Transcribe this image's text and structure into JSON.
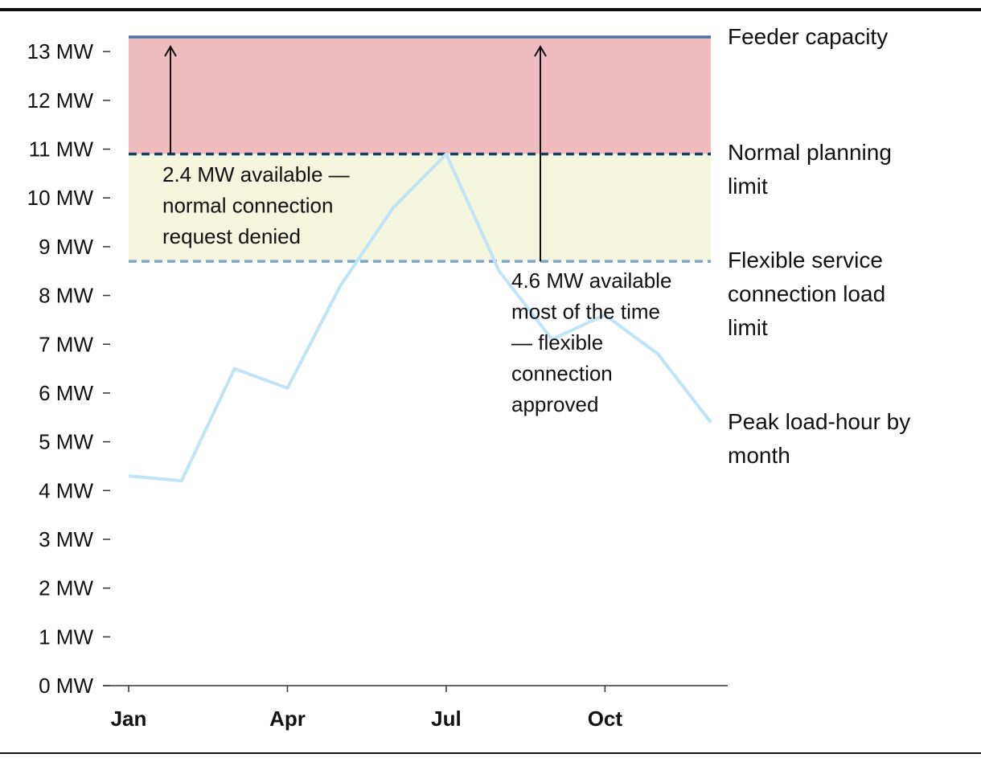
{
  "chart_data": {
    "type": "line",
    "title": "",
    "xlabel": "",
    "ylabel": "",
    "x": [
      "Jan",
      "Feb",
      "Mar",
      "Apr",
      "May",
      "Jun",
      "Jul",
      "Aug",
      "Sep",
      "Oct",
      "Nov",
      "Dec"
    ],
    "x_ticks": [
      "Jan",
      "Apr",
      "Jul",
      "Oct"
    ],
    "ylim": [
      0,
      13.6
    ],
    "y_ticks": [
      0,
      1,
      2,
      3,
      4,
      5,
      6,
      7,
      8,
      9,
      10,
      11,
      12,
      13
    ],
    "y_tick_labels": [
      "0 MW",
      "1 MW",
      "2 MW",
      "3 MW",
      "4 MW",
      "5 MW",
      "6 MW",
      "7 MW",
      "8 MW",
      "9 MW",
      "10 MW",
      "11 MW",
      "12 MW",
      "13 MW"
    ],
    "grid": false,
    "series": [
      {
        "name": "Peak load-hour by month",
        "color": "#bfe3f7",
        "values": [
          4.3,
          4.2,
          6.5,
          6.1,
          8.2,
          9.8,
          10.9,
          8.5,
          7.1,
          7.6,
          6.8,
          5.4
        ]
      }
    ],
    "reference_lines": [
      {
        "name": "Feeder capacity",
        "value": 13.3,
        "style": "solid",
        "color": "#4a72a6"
      },
      {
        "name": "Normal planning limit",
        "value": 10.9,
        "style": "dashed",
        "color": "#1d3e63"
      },
      {
        "name": "Flexible service connection load limit",
        "value": 8.7,
        "style": "dashed",
        "color": "#7ea4d6"
      }
    ],
    "bands": [
      {
        "from": 10.9,
        "to": 13.3,
        "color": "#efbcc0"
      },
      {
        "from": 8.7,
        "to": 10.9,
        "color": "#f3f5dd"
      }
    ],
    "annotations": [
      {
        "text": "2.4 MW available — normal connection request denied",
        "x": "Feb",
        "from": 10.9,
        "to": 13.3
      },
      {
        "text": "4.6 MW available most of the time — flexible connection approved",
        "x": "Sep",
        "from": 8.7,
        "to": 13.3
      }
    ],
    "legend": "right-side direct labels"
  }
}
